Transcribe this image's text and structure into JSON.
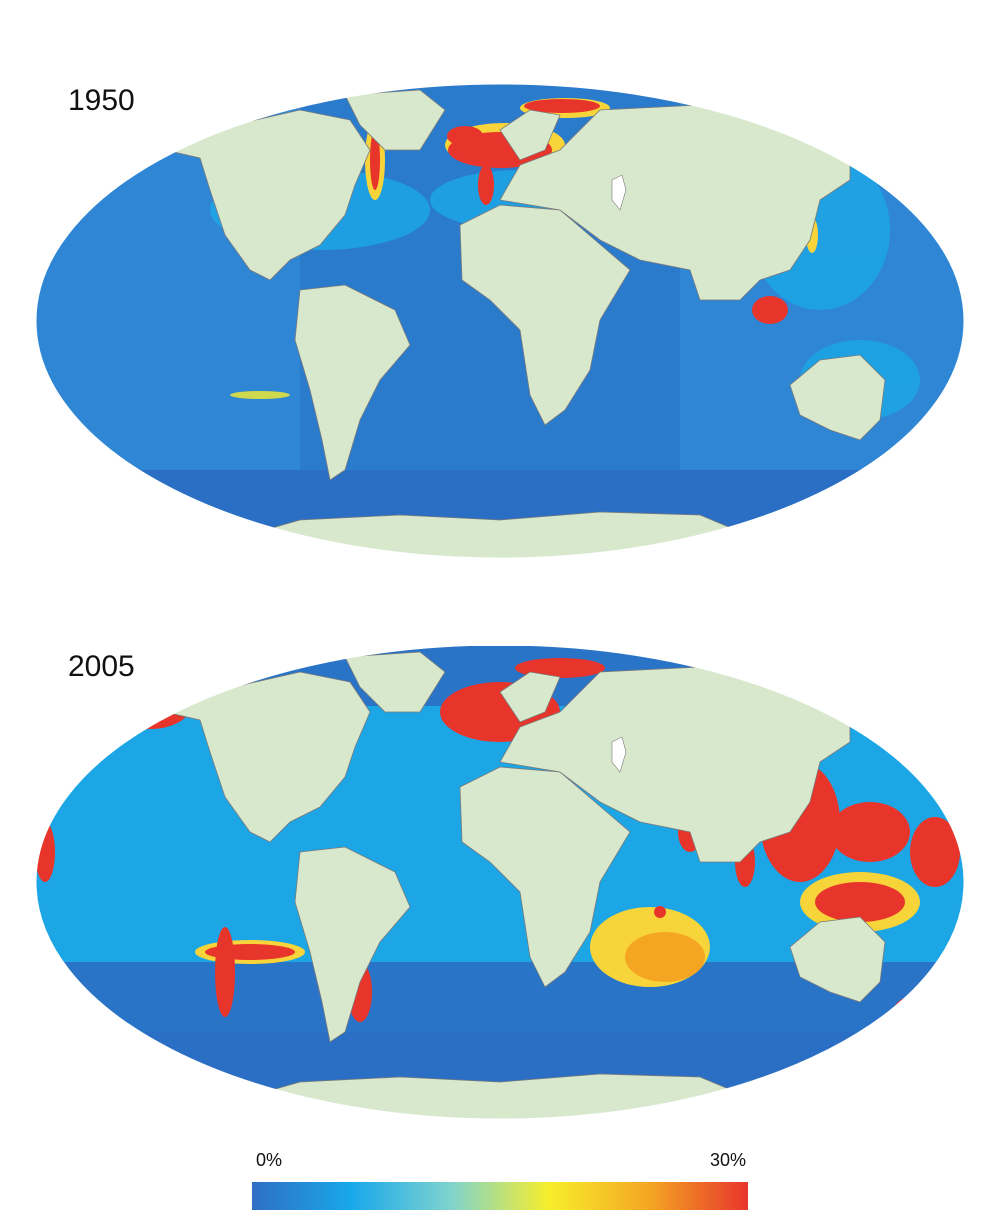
{
  "maps": [
    {
      "year": "1950"
    },
    {
      "year": "2005"
    }
  ],
  "legend": {
    "min_label": "0%",
    "max_label": "30%",
    "stops": [
      "#2f6fc4",
      "#18a8ea",
      "#7fd3cf",
      "#f7ee2a",
      "#f4a623",
      "#e8352b"
    ]
  },
  "colors": {
    "deep_ocean": "#2a6fc3",
    "ocean_mid": "#2f86d4",
    "shelf": "#1ca6e6",
    "land": "#d8e8cc",
    "border": "#7a7a7a",
    "high": "#e8352b",
    "medium": "#f7d43a",
    "low": "#9fdbe0"
  }
}
